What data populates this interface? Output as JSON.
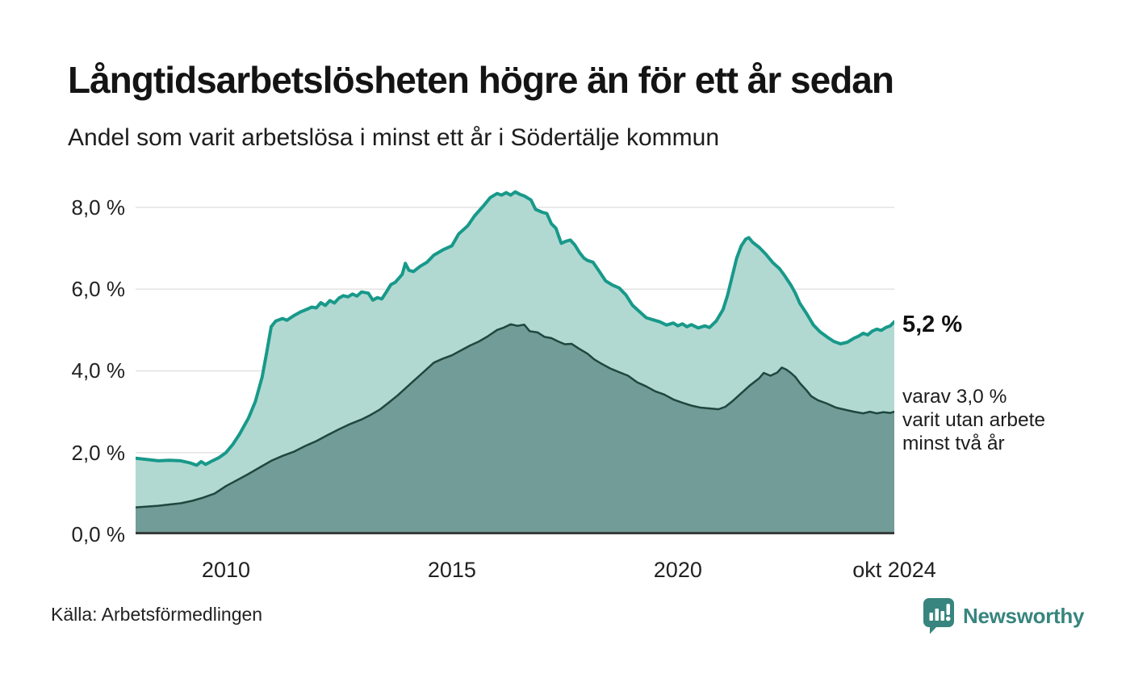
{
  "title": "Långtidsarbetslösheten högre än för ett år sedan",
  "subtitle": "Andel som varit arbetslösa i minst ett år i Södertälje kommun",
  "source": "Källa: Arbetsförmedlingen",
  "branding": {
    "name": "Newsworthy",
    "color": "#37857e"
  },
  "annotations": {
    "end_total_label": "5,2 %",
    "end_subset_lines": [
      "varav 3,0 %",
      "varit utan arbete",
      "minst två år"
    ]
  },
  "chart_data": {
    "type": "area",
    "title": "Långtidsarbetslösheten högre än för ett år sedan",
    "subtitle": "Andel som varit arbetslösa i minst ett år i Södertälje kommun",
    "x_domain": [
      2008.0,
      2024.79
    ],
    "y_max": 8.63,
    "grid_on": true,
    "grid_color": "#e3e3e3",
    "axis_color": "#363d3b",
    "y_ticks": [
      {
        "value": 0,
        "label": "0,0 %"
      },
      {
        "value": 2,
        "label": "2,0 %"
      },
      {
        "value": 4,
        "label": "4,0 %"
      },
      {
        "value": 6,
        "label": "6,0 %"
      },
      {
        "value": 8,
        "label": "8,0 %"
      }
    ],
    "x_ticks": [
      {
        "t": 2010,
        "label": "2010"
      },
      {
        "t": 2015,
        "label": "2015"
      },
      {
        "t": 2020,
        "label": "2020"
      },
      {
        "t": 2024.79,
        "label": "okt 2024"
      }
    ],
    "series": [
      {
        "id": "minst-ett-ar",
        "name": "Arbetslösa minst ett år",
        "end_value": "5,2 %",
        "stroke": "#18998a",
        "fill": "#b1d9d2",
        "stroke_width": 4,
        "points": [
          [
            2008.0,
            1.86
          ],
          [
            2008.25,
            1.83
          ],
          [
            2008.5,
            1.8
          ],
          [
            2008.75,
            1.81
          ],
          [
            2009.0,
            1.8
          ],
          [
            2009.2,
            1.75
          ],
          [
            2009.35,
            1.69
          ],
          [
            2009.45,
            1.78
          ],
          [
            2009.55,
            1.71
          ],
          [
            2009.7,
            1.8
          ],
          [
            2009.85,
            1.88
          ],
          [
            2010.0,
            2.0
          ],
          [
            2010.15,
            2.2
          ],
          [
            2010.3,
            2.45
          ],
          [
            2010.5,
            2.85
          ],
          [
            2010.65,
            3.25
          ],
          [
            2010.8,
            3.85
          ],
          [
            2010.9,
            4.45
          ],
          [
            2011.0,
            5.08
          ],
          [
            2011.1,
            5.22
          ],
          [
            2011.25,
            5.28
          ],
          [
            2011.35,
            5.24
          ],
          [
            2011.5,
            5.35
          ],
          [
            2011.65,
            5.44
          ],
          [
            2011.8,
            5.51
          ],
          [
            2011.9,
            5.56
          ],
          [
            2012.0,
            5.54
          ],
          [
            2012.1,
            5.67
          ],
          [
            2012.2,
            5.6
          ],
          [
            2012.3,
            5.72
          ],
          [
            2012.4,
            5.66
          ],
          [
            2012.5,
            5.78
          ],
          [
            2012.6,
            5.84
          ],
          [
            2012.7,
            5.81
          ],
          [
            2012.8,
            5.88
          ],
          [
            2012.9,
            5.83
          ],
          [
            2013.0,
            5.93
          ],
          [
            2013.15,
            5.9
          ],
          [
            2013.25,
            5.73
          ],
          [
            2013.35,
            5.79
          ],
          [
            2013.45,
            5.76
          ],
          [
            2013.55,
            5.93
          ],
          [
            2013.65,
            6.11
          ],
          [
            2013.75,
            6.17
          ],
          [
            2013.9,
            6.36
          ],
          [
            2013.97,
            6.63
          ],
          [
            2014.05,
            6.46
          ],
          [
            2014.15,
            6.43
          ],
          [
            2014.3,
            6.56
          ],
          [
            2014.45,
            6.66
          ],
          [
            2014.6,
            6.83
          ],
          [
            2014.8,
            6.96
          ],
          [
            2015.0,
            7.06
          ],
          [
            2015.15,
            7.35
          ],
          [
            2015.35,
            7.55
          ],
          [
            2015.5,
            7.79
          ],
          [
            2015.7,
            8.04
          ],
          [
            2015.85,
            8.24
          ],
          [
            2016.0,
            8.34
          ],
          [
            2016.1,
            8.3
          ],
          [
            2016.2,
            8.36
          ],
          [
            2016.3,
            8.3
          ],
          [
            2016.4,
            8.38
          ],
          [
            2016.5,
            8.32
          ],
          [
            2016.6,
            8.28
          ],
          [
            2016.75,
            8.18
          ],
          [
            2016.85,
            7.95
          ],
          [
            2017.0,
            7.88
          ],
          [
            2017.1,
            7.85
          ],
          [
            2017.2,
            7.6
          ],
          [
            2017.3,
            7.49
          ],
          [
            2017.42,
            7.12
          ],
          [
            2017.52,
            7.17
          ],
          [
            2017.62,
            7.2
          ],
          [
            2017.72,
            7.08
          ],
          [
            2017.82,
            6.9
          ],
          [
            2017.92,
            6.76
          ],
          [
            2018.0,
            6.7
          ],
          [
            2018.12,
            6.66
          ],
          [
            2018.25,
            6.45
          ],
          [
            2018.4,
            6.2
          ],
          [
            2018.55,
            6.1
          ],
          [
            2018.7,
            6.03
          ],
          [
            2018.85,
            5.86
          ],
          [
            2019.0,
            5.6
          ],
          [
            2019.15,
            5.45
          ],
          [
            2019.3,
            5.3
          ],
          [
            2019.45,
            5.25
          ],
          [
            2019.6,
            5.2
          ],
          [
            2019.75,
            5.12
          ],
          [
            2019.9,
            5.17
          ],
          [
            2020.0,
            5.1
          ],
          [
            2020.1,
            5.15
          ],
          [
            2020.2,
            5.08
          ],
          [
            2020.3,
            5.13
          ],
          [
            2020.45,
            5.05
          ],
          [
            2020.6,
            5.1
          ],
          [
            2020.7,
            5.06
          ],
          [
            2020.85,
            5.22
          ],
          [
            2021.0,
            5.5
          ],
          [
            2021.1,
            5.85
          ],
          [
            2021.2,
            6.3
          ],
          [
            2021.3,
            6.75
          ],
          [
            2021.4,
            7.05
          ],
          [
            2021.5,
            7.22
          ],
          [
            2021.57,
            7.26
          ],
          [
            2021.65,
            7.15
          ],
          [
            2021.8,
            7.02
          ],
          [
            2021.95,
            6.85
          ],
          [
            2022.1,
            6.65
          ],
          [
            2022.25,
            6.5
          ],
          [
            2022.35,
            6.35
          ],
          [
            2022.5,
            6.1
          ],
          [
            2022.6,
            5.9
          ],
          [
            2022.7,
            5.65
          ],
          [
            2022.85,
            5.4
          ],
          [
            2023.0,
            5.12
          ],
          [
            2023.15,
            4.95
          ],
          [
            2023.3,
            4.83
          ],
          [
            2023.45,
            4.72
          ],
          [
            2023.6,
            4.66
          ],
          [
            2023.75,
            4.7
          ],
          [
            2023.9,
            4.8
          ],
          [
            2024.0,
            4.85
          ],
          [
            2024.1,
            4.92
          ],
          [
            2024.2,
            4.88
          ],
          [
            2024.3,
            4.97
          ],
          [
            2024.4,
            5.02
          ],
          [
            2024.5,
            4.99
          ],
          [
            2024.6,
            5.06
          ],
          [
            2024.7,
            5.1
          ],
          [
            2024.79,
            5.2
          ]
        ]
      },
      {
        "id": "minst-tva-ar",
        "name": "varav arbetslösa minst två år",
        "end_value": "3,0 %",
        "stroke": "#20473f",
        "fill": "#719c97",
        "stroke_width": 2.5,
        "points": [
          [
            2008.0,
            0.66
          ],
          [
            2008.25,
            0.68
          ],
          [
            2008.5,
            0.7
          ],
          [
            2008.75,
            0.73
          ],
          [
            2009.0,
            0.76
          ],
          [
            2009.25,
            0.82
          ],
          [
            2009.5,
            0.9
          ],
          [
            2009.75,
            1.0
          ],
          [
            2010.0,
            1.18
          ],
          [
            2010.25,
            1.33
          ],
          [
            2010.5,
            1.48
          ],
          [
            2010.75,
            1.64
          ],
          [
            2011.0,
            1.8
          ],
          [
            2011.25,
            1.92
          ],
          [
            2011.5,
            2.02
          ],
          [
            2011.75,
            2.16
          ],
          [
            2012.0,
            2.28
          ],
          [
            2012.25,
            2.43
          ],
          [
            2012.5,
            2.57
          ],
          [
            2012.75,
            2.7
          ],
          [
            2013.0,
            2.81
          ],
          [
            2013.2,
            2.92
          ],
          [
            2013.4,
            3.05
          ],
          [
            2013.6,
            3.22
          ],
          [
            2013.8,
            3.4
          ],
          [
            2014.0,
            3.6
          ],
          [
            2014.15,
            3.75
          ],
          [
            2014.3,
            3.9
          ],
          [
            2014.45,
            4.05
          ],
          [
            2014.6,
            4.2
          ],
          [
            2014.8,
            4.3
          ],
          [
            2015.0,
            4.38
          ],
          [
            2015.2,
            4.5
          ],
          [
            2015.4,
            4.62
          ],
          [
            2015.6,
            4.72
          ],
          [
            2015.8,
            4.85
          ],
          [
            2016.0,
            5.0
          ],
          [
            2016.15,
            5.06
          ],
          [
            2016.3,
            5.14
          ],
          [
            2016.45,
            5.1
          ],
          [
            2016.6,
            5.13
          ],
          [
            2016.72,
            4.97
          ],
          [
            2016.9,
            4.94
          ],
          [
            2017.05,
            4.83
          ],
          [
            2017.2,
            4.8
          ],
          [
            2017.35,
            4.72
          ],
          [
            2017.5,
            4.65
          ],
          [
            2017.65,
            4.66
          ],
          [
            2017.8,
            4.55
          ],
          [
            2018.0,
            4.42
          ],
          [
            2018.15,
            4.28
          ],
          [
            2018.3,
            4.18
          ],
          [
            2018.5,
            4.06
          ],
          [
            2018.7,
            3.97
          ],
          [
            2018.9,
            3.88
          ],
          [
            2019.1,
            3.72
          ],
          [
            2019.3,
            3.62
          ],
          [
            2019.5,
            3.5
          ],
          [
            2019.7,
            3.42
          ],
          [
            2019.9,
            3.3
          ],
          [
            2020.1,
            3.22
          ],
          [
            2020.3,
            3.15
          ],
          [
            2020.5,
            3.1
          ],
          [
            2020.7,
            3.08
          ],
          [
            2020.9,
            3.06
          ],
          [
            2021.05,
            3.12
          ],
          [
            2021.2,
            3.25
          ],
          [
            2021.4,
            3.45
          ],
          [
            2021.6,
            3.65
          ],
          [
            2021.8,
            3.82
          ],
          [
            2021.9,
            3.95
          ],
          [
            2022.05,
            3.88
          ],
          [
            2022.2,
            3.96
          ],
          [
            2022.3,
            4.08
          ],
          [
            2022.4,
            4.03
          ],
          [
            2022.5,
            3.95
          ],
          [
            2022.6,
            3.85
          ],
          [
            2022.7,
            3.7
          ],
          [
            2022.85,
            3.52
          ],
          [
            2022.95,
            3.38
          ],
          [
            2023.1,
            3.28
          ],
          [
            2023.3,
            3.2
          ],
          [
            2023.5,
            3.1
          ],
          [
            2023.7,
            3.05
          ],
          [
            2023.9,
            3.0
          ],
          [
            2024.1,
            2.96
          ],
          [
            2024.25,
            3.0
          ],
          [
            2024.4,
            2.96
          ],
          [
            2024.55,
            2.99
          ],
          [
            2024.7,
            2.97
          ],
          [
            2024.79,
            3.0
          ]
        ]
      }
    ]
  }
}
